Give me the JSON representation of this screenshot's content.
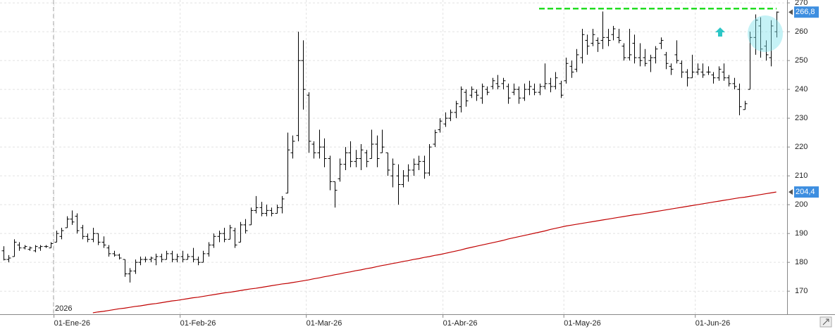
{
  "chart_data": {
    "type": "ohlc",
    "year_label": "2026",
    "categories": [
      null,
      null,
      null,
      null,
      null,
      null,
      null,
      null,
      null,
      null,
      "01-Ene-26",
      null,
      null,
      null,
      null,
      null,
      null,
      null,
      null,
      null,
      null,
      null,
      null,
      null,
      null,
      null,
      null,
      null,
      null,
      null,
      null,
      null,
      null,
      null,
      "01-Feb-26",
      null,
      null,
      null,
      null,
      null,
      null,
      null,
      null,
      null,
      null,
      null,
      null,
      null,
      null,
      null,
      null,
      null,
      null,
      null,
      null,
      null,
      null,
      null,
      "01-Mar-26",
      null,
      null,
      null,
      null,
      null,
      null,
      null,
      null,
      null,
      null,
      null,
      null,
      null,
      null,
      null,
      null,
      null,
      null,
      null,
      null,
      null,
      null,
      null,
      null,
      null,
      "01-Abr-26",
      null,
      null,
      null,
      null,
      null,
      null,
      null,
      null,
      null,
      null,
      null,
      null,
      null,
      null,
      null,
      null,
      null,
      null,
      null,
      null,
      null,
      null,
      "01-May-26",
      null,
      null,
      null,
      null,
      null,
      null,
      null,
      null,
      null,
      null,
      null,
      null,
      null,
      null,
      null,
      null,
      null,
      null,
      null,
      null,
      null,
      null,
      null,
      null,
      "01-Jun-26",
      null,
      null,
      null,
      null,
      null,
      null,
      null,
      null,
      null,
      null,
      null,
      null,
      null,
      null,
      null
    ],
    "ohlc": [
      [
        184,
        185.6,
        180.7,
        181
      ],
      [
        181,
        182.5,
        180,
        181.5
      ],
      [
        182,
        188,
        182,
        187
      ],
      [
        186,
        187,
        184,
        185
      ],
      [
        185,
        186,
        184.5,
        185.5
      ],
      [
        184.5,
        185.5,
        184,
        185
      ],
      [
        184,
        186,
        183.5,
        185.5
      ],
      [
        185,
        186,
        184,
        185.5
      ],
      [
        185.5,
        186,
        185,
        185.5
      ],
      [
        185,
        187,
        185,
        186.5
      ],
      [
        187,
        191,
        187,
        190
      ],
      [
        189,
        192,
        188,
        191
      ],
      [
        192,
        196,
        192,
        195
      ],
      [
        195,
        198,
        193,
        194
      ],
      [
        196,
        197,
        190,
        191
      ],
      [
        192,
        193,
        188,
        189
      ],
      [
        189,
        190,
        187,
        188
      ],
      [
        188,
        192,
        187,
        190
      ],
      [
        190,
        190,
        186,
        187
      ],
      [
        187,
        189,
        185,
        186
      ],
      [
        185,
        186,
        182,
        183
      ],
      [
        183,
        184,
        182,
        182.5
      ],
      [
        182.5,
        183,
        181,
        181.5
      ],
      [
        181,
        181,
        175,
        176
      ],
      [
        176,
        178,
        173,
        177
      ],
      [
        177,
        181,
        176,
        180
      ],
      [
        180,
        182,
        179,
        181
      ],
      [
        181,
        182,
        180,
        181
      ],
      [
        181,
        182,
        180,
        181.5
      ],
      [
        181,
        183,
        179,
        182
      ],
      [
        182,
        183,
        180,
        181
      ],
      [
        181,
        184,
        181,
        183
      ],
      [
        183,
        184,
        180,
        181
      ],
      [
        181,
        183,
        180,
        182
      ],
      [
        182,
        184,
        180,
        181
      ],
      [
        181,
        183,
        181,
        182
      ],
      [
        182,
        185,
        180,
        181
      ],
      [
        181,
        182,
        179,
        180
      ],
      [
        180,
        184,
        180,
        183
      ],
      [
        183,
        187,
        182,
        186
      ],
      [
        186,
        190,
        185,
        189
      ],
      [
        189,
        191,
        187,
        190
      ],
      [
        190,
        192,
        187,
        188
      ],
      [
        188,
        193,
        188,
        192
      ],
      [
        191,
        192,
        185,
        186
      ],
      [
        187,
        194,
        187,
        193
      ],
      [
        193,
        195,
        190,
        191
      ],
      [
        193,
        199,
        193,
        198
      ],
      [
        198,
        203,
        197,
        199
      ],
      [
        199,
        201,
        196,
        197
      ],
      [
        197,
        200,
        196,
        198
      ],
      [
        198,
        199,
        196,
        197
      ],
      [
        197,
        200,
        197,
        199
      ],
      [
        199,
        203,
        197,
        202
      ],
      [
        204,
        225,
        204,
        219
      ],
      [
        218,
        224,
        216,
        222
      ],
      [
        224,
        260,
        222,
        250
      ],
      [
        250,
        257,
        233,
        240
      ],
      [
        238,
        239,
        218,
        222
      ],
      [
        221,
        222,
        216,
        218
      ],
      [
        218,
        226,
        216,
        220
      ],
      [
        220,
        223,
        213,
        216
      ],
      [
        216,
        217,
        205,
        208
      ],
      [
        208,
        208,
        199,
        205
      ],
      [
        209,
        216,
        208,
        214
      ],
      [
        214,
        220,
        212,
        218
      ],
      [
        218,
        222,
        213,
        215
      ],
      [
        215,
        219,
        213,
        216
      ],
      [
        216,
        221,
        212,
        219
      ],
      [
        218,
        219,
        213,
        215
      ],
      [
        216,
        226,
        216,
        221
      ],
      [
        221,
        224,
        213,
        216
      ],
      [
        218,
        226,
        218,
        220
      ],
      [
        218,
        218,
        210,
        212
      ],
      [
        210,
        216,
        206,
        214
      ],
      [
        210,
        214,
        200,
        207
      ],
      [
        207,
        212,
        206,
        210
      ],
      [
        210,
        214,
        208,
        212
      ],
      [
        212,
        216,
        210,
        214
      ],
      [
        214,
        217,
        212,
        215
      ],
      [
        215,
        217,
        209,
        211
      ],
      [
        211,
        221,
        210,
        220
      ],
      [
        221,
        226,
        220,
        225
      ],
      [
        226,
        230,
        225,
        229
      ],
      [
        228,
        232,
        227,
        230
      ],
      [
        230,
        233,
        229,
        232
      ],
      [
        232,
        236,
        230,
        235
      ],
      [
        234,
        241,
        232,
        240
      ],
      [
        239,
        240,
        234,
        236
      ],
      [
        238,
        241,
        237,
        240
      ],
      [
        239,
        240,
        236,
        238
      ],
      [
        237,
        242,
        235,
        241
      ],
      [
        240,
        241,
        238,
        239
      ],
      [
        241,
        244,
        240,
        243
      ],
      [
        242,
        245,
        240,
        241
      ],
      [
        242,
        244,
        240,
        243
      ],
      [
        241,
        242,
        235,
        237
      ],
      [
        239,
        242,
        238,
        240
      ],
      [
        240,
        241,
        235,
        237
      ],
      [
        237,
        242,
        236,
        240
      ],
      [
        240,
        243,
        238,
        241
      ],
      [
        240,
        242,
        238,
        239
      ],
      [
        239,
        242,
        238,
        241
      ],
      [
        241,
        249,
        240,
        242
      ],
      [
        242,
        244,
        239,
        241
      ],
      [
        241,
        246,
        240,
        244
      ],
      [
        242,
        243,
        237,
        238
      ],
      [
        243,
        251,
        242,
        249
      ],
      [
        248,
        250,
        244,
        246
      ],
      [
        247,
        254,
        246,
        252
      ],
      [
        251,
        261,
        249,
        259
      ],
      [
        257,
        259,
        252,
        255
      ],
      [
        256,
        261,
        255,
        259
      ],
      [
        257,
        258,
        253,
        256
      ],
      [
        257,
        267,
        254,
        258
      ],
      [
        258,
        261,
        255,
        257
      ],
      [
        259,
        262,
        257,
        261
      ],
      [
        258,
        261,
        256,
        257
      ],
      [
        255,
        256,
        250,
        251
      ],
      [
        251,
        261,
        250,
        252
      ],
      [
        256,
        259,
        249,
        251
      ],
      [
        251,
        256,
        248,
        250
      ],
      [
        251,
        254,
        248,
        249
      ],
      [
        250,
        252,
        246,
        251
      ],
      [
        251,
        255,
        249,
        254
      ],
      [
        256,
        258,
        254,
        257
      ],
      [
        252,
        253,
        247,
        249
      ],
      [
        248,
        249,
        245,
        247
      ],
      [
        252,
        257,
        249,
        250
      ],
      [
        249,
        250,
        244,
        246
      ],
      [
        246,
        247,
        241,
        244
      ],
      [
        244,
        252,
        244,
        246
      ],
      [
        246,
        249,
        245,
        247
      ],
      [
        246,
        249,
        244,
        245
      ],
      [
        246,
        248,
        245,
        246
      ],
      [
        245,
        246,
        242,
        244
      ],
      [
        244,
        248,
        243,
        247
      ],
      [
        246,
        249,
        243,
        244
      ],
      [
        244,
        245,
        241,
        242
      ],
      [
        242,
        244,
        240,
        241
      ],
      [
        240,
        242,
        231,
        234
      ],
      [
        233,
        236,
        233,
        235
      ],
      [
        240,
        260,
        240,
        258
      ],
      [
        258,
        266,
        252,
        264
      ],
      [
        262,
        265,
        251,
        254
      ],
      [
        255,
        257,
        250,
        252
      ],
      [
        251,
        264,
        248,
        262
      ],
      [
        260,
        267,
        258,
        266.8
      ]
    ],
    "ohlc_color": "#000000",
    "moving_average": {
      "color": "#c00000",
      "values": [
        null,
        null,
        null,
        null,
        null,
        null,
        null,
        null,
        null,
        null,
        null,
        null,
        null,
        null,
        null,
        null,
        null,
        162.5,
        162.8,
        163.0,
        163.3,
        163.6,
        163.9,
        164.1,
        164.4,
        164.7,
        164.9,
        165.2,
        165.5,
        165.7,
        166.0,
        166.3,
        166.6,
        166.8,
        167.1,
        167.4,
        167.7,
        167.9,
        168.2,
        168.5,
        168.8,
        169.1,
        169.4,
        169.6,
        169.9,
        170.2,
        170.5,
        170.8,
        171.0,
        171.3,
        171.6,
        171.9,
        172.2,
        172.5,
        172.7,
        173.0,
        173.3,
        173.6,
        173.9,
        174.3,
        174.6,
        175.0,
        175.3,
        175.7,
        176.0,
        176.4,
        176.7,
        177.1,
        177.4,
        177.8,
        178.1,
        178.5,
        178.9,
        179.2,
        179.6,
        179.9,
        180.3,
        180.6,
        181.0,
        181.3,
        181.7,
        182.0,
        182.4,
        182.7,
        183.1,
        183.5,
        183.9,
        184.3,
        184.8,
        185.2,
        185.6,
        186.0,
        186.4,
        186.8,
        187.2,
        187.6,
        188.1,
        188.5,
        188.9,
        189.3,
        189.7,
        190.1,
        190.5,
        190.9,
        191.4,
        191.8,
        192.2,
        192.6,
        192.9,
        193.2,
        193.5,
        193.8,
        194.1,
        194.4,
        194.7,
        195.0,
        195.3,
        195.6,
        195.9,
        196.2,
        196.5,
        196.7,
        197.0,
        197.3,
        197.6,
        197.9,
        198.2,
        198.5,
        198.8,
        199.1,
        199.4,
        199.7,
        200.0,
        200.3,
        200.6,
        200.9,
        201.2,
        201.5,
        201.8,
        202.1,
        202.4,
        202.6,
        202.9,
        203.2,
        203.5,
        203.8,
        204.1,
        204.4
      ]
    },
    "hline": {
      "value": 268,
      "color": "#22dd22"
    },
    "price_labels": [
      {
        "value": 266.8,
        "label": "266,8",
        "color": "#3d8ee0"
      },
      {
        "value": 204.4,
        "label": "204,4",
        "color": "#3d8ee0"
      }
    ],
    "ylim": [
      162,
      271
    ],
    "yticks": [
      170,
      180,
      190,
      200,
      210,
      220,
      230,
      240,
      250,
      260,
      270
    ],
    "grid": true
  }
}
